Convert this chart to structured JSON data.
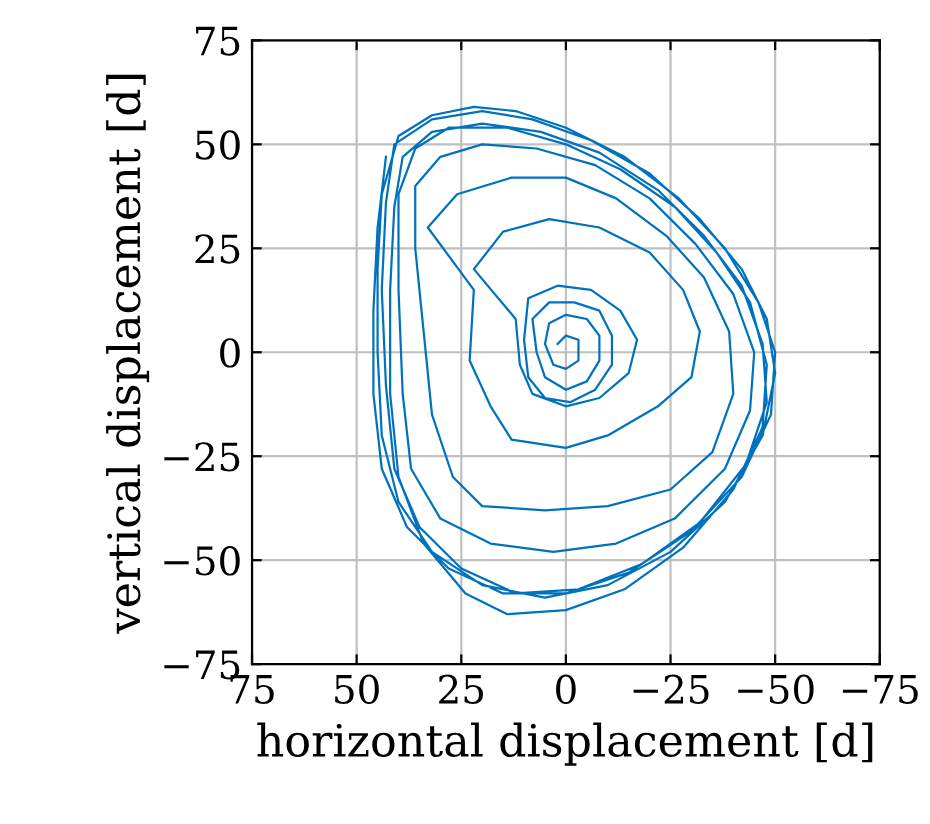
{
  "chart_data": {
    "type": "line",
    "xlabel": "horizontal displacement [d]",
    "ylabel": "vertical displacement [d]",
    "grid": true,
    "marker": "none",
    "line_style": "solid",
    "xlim": [
      75,
      -75
    ],
    "ylim": [
      -75,
      75
    ],
    "xticks": [
      75,
      50,
      25,
      0,
      {
        "value": -25,
        "label": "−25"
      },
      {
        "value": -50,
        "label": "−50"
      },
      {
        "value": -75,
        "label": "−75"
      }
    ],
    "yticks": [
      {
        "value": -75,
        "label": "−75"
      },
      {
        "value": -50,
        "label": "−50"
      },
      {
        "value": -25,
        "label": "−25"
      },
      0,
      25,
      50,
      75
    ],
    "series": [
      {
        "color": "#0072bd",
        "x": [
          43,
          45,
          46,
          46,
          44,
          38,
          28,
          15,
          0,
          -15,
          -30,
          -42,
          -49,
          -50,
          -46,
          -38,
          -27,
          -14,
          0,
          12,
          22,
          32,
          40,
          44,
          45,
          45,
          44,
          40,
          32,
          20,
          5,
          -10,
          -25,
          -38,
          -47,
          -50,
          -48,
          -42,
          -32,
          -20,
          -6,
          8,
          20,
          32,
          41,
          43,
          44,
          43,
          41,
          35,
          25,
          12,
          -3,
          -18,
          -32,
          -43,
          -48,
          -47,
          -42,
          -33,
          -22,
          -8,
          6,
          20,
          32,
          39,
          41,
          42,
          42,
          40,
          34,
          24,
          14,
          0,
          -14,
          -28,
          -40,
          -47,
          -48,
          -44,
          -36,
          -26,
          -13,
          0,
          14,
          28,
          36,
          40,
          40,
          39,
          37,
          30,
          18,
          3,
          -12,
          -26,
          -38,
          -44,
          -45,
          -40,
          -31,
          -20,
          -7,
          7,
          20,
          30,
          36,
          36,
          34,
          32,
          27,
          20,
          5,
          -10,
          -25,
          -35,
          -40,
          -39,
          -33,
          -24,
          -12,
          0,
          13,
          26,
          33,
          22,
          23,
          18,
          13,
          0,
          -10,
          -22,
          -30,
          -32,
          -28,
          -20,
          -8,
          4,
          15,
          22,
          12,
          11,
          8,
          0,
          -8,
          -15,
          -17,
          -13,
          -6,
          2,
          9,
          10,
          9,
          5,
          -1,
          -7,
          -11,
          -11,
          -8,
          -2,
          4,
          8,
          7,
          5,
          0,
          -5,
          -8,
          -8,
          -5,
          0,
          4,
          5,
          3,
          0,
          -3,
          -3,
          0,
          2
        ],
        "values": [
          47,
          30,
          10,
          -10,
          -28,
          -42,
          -52,
          -58,
          -58,
          -53,
          -43,
          -30,
          -15,
          0,
          12,
          25,
          37,
          47,
          54,
          58,
          59,
          57,
          52,
          38,
          20,
          0,
          -20,
          -36,
          -48,
          -56,
          -59,
          -56,
          -48,
          -36,
          -20,
          -5,
          8,
          20,
          32,
          43,
          51,
          56,
          58,
          56,
          50,
          36,
          15,
          -8,
          -28,
          -42,
          -52,
          -58,
          -57,
          -51,
          -41,
          -27,
          -12,
          2,
          16,
          28,
          39,
          48,
          53,
          55,
          53,
          47,
          35,
          15,
          -10,
          -30,
          -46,
          -58,
          -63,
          -62,
          -57,
          -47,
          -33,
          -18,
          -3,
          12,
          24,
          35,
          44,
          50,
          54,
          54,
          49,
          38,
          15,
          -10,
          -28,
          -40,
          -46,
          -48,
          -46,
          -40,
          -28,
          -14,
          0,
          14,
          26,
          37,
          45,
          49,
          50,
          47,
          40,
          25,
          5,
          -15,
          -30,
          -37,
          -38,
          -37,
          -33,
          -24,
          -10,
          5,
          18,
          28,
          37,
          42,
          42,
          38,
          30,
          15,
          -2,
          -13,
          -21,
          -23,
          -20,
          -13,
          -6,
          5,
          15,
          24,
          30,
          32,
          29,
          20,
          8,
          -3,
          -10,
          -13,
          -11,
          -5,
          3,
          10,
          15,
          16,
          13,
          3,
          -6,
          -11,
          -12,
          -9,
          -3,
          4,
          10,
          12,
          12,
          8,
          0,
          -6,
          -9,
          -7,
          -2,
          4,
          8,
          9,
          7,
          2,
          -3,
          -4,
          -2,
          3,
          4,
          2
        ]
      }
    ]
  }
}
